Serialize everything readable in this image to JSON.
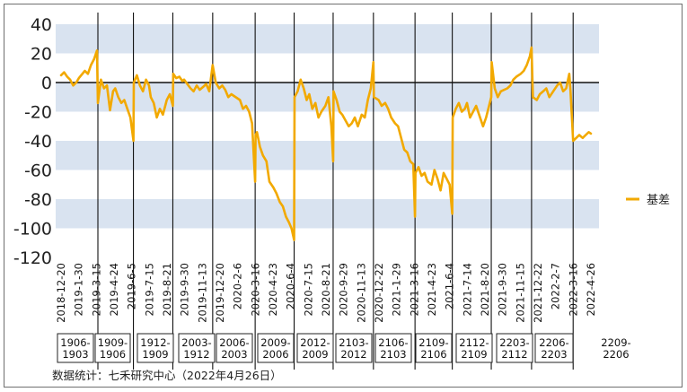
{
  "chart_data": {
    "type": "line",
    "title": "",
    "xlabel": "",
    "ylabel": "",
    "ylim": [
      -120,
      40
    ],
    "y_ticks": [
      40,
      20,
      0,
      -20,
      -40,
      -60,
      -80,
      -100,
      -120
    ],
    "band_color": "#d9e3f0",
    "x_tick_labels": [
      "2018-12-20",
      "2019-1-30",
      "2019-3-15",
      "2019-4-24",
      "2019-6-5",
      "2019-7-15",
      "2019-8-21",
      "2019-9-30",
      "2019-11-13",
      "2019-12-20",
      "2020-2-6",
      "2020-3-16",
      "2020-4-23",
      "2020-6-4",
      "2020-7-15",
      "2020-8-21",
      "2020-9-29",
      "2020-11-13",
      "2020-12-22",
      "2021-1-29",
      "2021-3-16",
      "2021-4-23",
      "2021-6-4",
      "2021-7-14",
      "2021-8-20",
      "2021-9-30",
      "2021-11-15",
      "2021-12-22",
      "2022-2-7",
      "2022-3-16",
      "2022-4-26"
    ],
    "contract_labels": [
      "1906-\n1903",
      "1909-\n1906",
      "1912-\n1909",
      "2003-\n1912",
      "2006-\n2003",
      "2009-\n2006",
      "2012-\n2009",
      "2103-\n2012",
      "2106-\n2103",
      "2109-\n2106",
      "2112-\n2109",
      "2203-\n2112",
      "2206-\n2203",
      "2209-\n2206"
    ],
    "roll_dates": [
      "2019-3-15",
      "2019-6-5",
      "2019-9-4",
      "2019-12-5",
      "2020-3-12",
      "2020-6-10",
      "2020-9-8",
      "2020-12-10",
      "2021-3-16",
      "2021-6-10",
      "2021-9-8",
      "2021-12-10",
      "2022-3-16"
    ],
    "series": [
      {
        "name": "基差",
        "color": "#f2a900",
        "points": [
          [
            "2018-12-20",
            5
          ],
          [
            "2018-12-27",
            7
          ],
          [
            "2019-1-3",
            4
          ],
          [
            "2019-1-10",
            2
          ],
          [
            "2019-1-17",
            -2
          ],
          [
            "2019-1-24",
            0
          ],
          [
            "2019-1-30",
            3
          ],
          [
            "2019-2-13",
            8
          ],
          [
            "2019-2-20",
            6
          ],
          [
            "2019-2-27",
            12
          ],
          [
            "2019-3-6",
            16
          ],
          [
            "2019-3-13",
            22
          ],
          [
            "2019-3-15",
            -14
          ],
          [
            "2019-3-22",
            2
          ],
          [
            "2019-3-29",
            -4
          ],
          [
            "2019-4-5",
            -2
          ],
          [
            "2019-4-12",
            -19
          ],
          [
            "2019-4-19",
            -6
          ],
          [
            "2019-4-24",
            -4
          ],
          [
            "2019-5-1",
            -10
          ],
          [
            "2019-5-8",
            -14
          ],
          [
            "2019-5-15",
            -12
          ],
          [
            "2019-5-22",
            -18
          ],
          [
            "2019-5-29",
            -24
          ],
          [
            "2019-6-5",
            -40
          ],
          [
            "2019-6-6",
            0
          ],
          [
            "2019-6-13",
            5
          ],
          [
            "2019-6-20",
            -2
          ],
          [
            "2019-6-27",
            -6
          ],
          [
            "2019-7-4",
            2
          ],
          [
            "2019-7-11",
            -2
          ],
          [
            "2019-7-15",
            -10
          ],
          [
            "2019-7-22",
            -14
          ],
          [
            "2019-7-29",
            -24
          ],
          [
            "2019-8-5",
            -18
          ],
          [
            "2019-8-12",
            -22
          ],
          [
            "2019-8-21",
            -12
          ],
          [
            "2019-8-28",
            -8
          ],
          [
            "2019-9-4",
            -16
          ],
          [
            "2019-9-5",
            6
          ],
          [
            "2019-9-12",
            3
          ],
          [
            "2019-9-19",
            4
          ],
          [
            "2019-9-26",
            1
          ],
          [
            "2019-9-30",
            2
          ],
          [
            "2019-10-15",
            -4
          ],
          [
            "2019-10-22",
            -6
          ],
          [
            "2019-10-29",
            -2
          ],
          [
            "2019-11-5",
            -5
          ],
          [
            "2019-11-13",
            -3
          ],
          [
            "2019-11-20",
            -1
          ],
          [
            "2019-11-27",
            -6
          ],
          [
            "2019-12-5",
            12
          ],
          [
            "2019-12-12",
            0
          ],
          [
            "2019-12-20",
            -4
          ],
          [
            "2019-12-27",
            -2
          ],
          [
            "2020-1-3",
            -5
          ],
          [
            "2020-1-10",
            -10
          ],
          [
            "2020-1-17",
            -8
          ],
          [
            "2020-2-6",
            -12
          ],
          [
            "2020-2-13",
            -18
          ],
          [
            "2020-2-20",
            -16
          ],
          [
            "2020-2-27",
            -20
          ],
          [
            "2020-3-5",
            -28
          ],
          [
            "2020-3-12",
            -68
          ],
          [
            "2020-3-13",
            -36
          ],
          [
            "2020-3-16",
            -34
          ],
          [
            "2020-3-23",
            -44
          ],
          [
            "2020-3-30",
            -50
          ],
          [
            "2020-4-7",
            -54
          ],
          [
            "2020-4-14",
            -68
          ],
          [
            "2020-4-23",
            -72
          ],
          [
            "2020-4-30",
            -76
          ],
          [
            "2020-5-8",
            -82
          ],
          [
            "2020-5-15",
            -85
          ],
          [
            "2020-5-22",
            -92
          ],
          [
            "2020-5-29",
            -96
          ],
          [
            "2020-6-4",
            -100
          ],
          [
            "2020-6-10",
            -108
          ],
          [
            "2020-6-11",
            -10
          ],
          [
            "2020-6-18",
            -6
          ],
          [
            "2020-6-25",
            2
          ],
          [
            "2020-7-2",
            -4
          ],
          [
            "2020-7-9",
            -12
          ],
          [
            "2020-7-15",
            -8
          ],
          [
            "2020-7-22",
            -18
          ],
          [
            "2020-7-29",
            -14
          ],
          [
            "2020-8-5",
            -24
          ],
          [
            "2020-8-12",
            -20
          ],
          [
            "2020-8-21",
            -16
          ],
          [
            "2020-8-28",
            -10
          ],
          [
            "2020-9-4",
            -30
          ],
          [
            "2020-9-8",
            -54
          ],
          [
            "2020-9-9",
            -6
          ],
          [
            "2020-9-16",
            -12
          ],
          [
            "2020-9-23",
            -20
          ],
          [
            "2020-9-29",
            -22
          ],
          [
            "2020-10-14",
            -30
          ],
          [
            "2020-10-21",
            -28
          ],
          [
            "2020-10-28",
            -24
          ],
          [
            "2020-11-4",
            -30
          ],
          [
            "2020-11-13",
            -22
          ],
          [
            "2020-11-20",
            -24
          ],
          [
            "2020-11-27",
            -12
          ],
          [
            "2020-12-4",
            -4
          ],
          [
            "2020-12-10",
            14
          ],
          [
            "2020-12-11",
            -10
          ],
          [
            "2020-12-22",
            -12
          ],
          [
            "2020-12-29",
            -16
          ],
          [
            "2021-1-6",
            -14
          ],
          [
            "2021-1-13",
            -18
          ],
          [
            "2021-1-20",
            -24
          ],
          [
            "2021-1-29",
            -28
          ],
          [
            "2021-2-5",
            -30
          ],
          [
            "2021-2-19",
            -46
          ],
          [
            "2021-2-26",
            -48
          ],
          [
            "2021-3-5",
            -54
          ],
          [
            "2021-3-12",
            -56
          ],
          [
            "2021-3-16",
            -92
          ],
          [
            "2021-3-17",
            -62
          ],
          [
            "2021-3-24",
            -58
          ],
          [
            "2021-3-31",
            -64
          ],
          [
            "2021-4-7",
            -62
          ],
          [
            "2021-4-14",
            -68
          ],
          [
            "2021-4-23",
            -70
          ],
          [
            "2021-4-30",
            -60
          ],
          [
            "2021-5-7",
            -66
          ],
          [
            "2021-5-14",
            -74
          ],
          [
            "2021-5-21",
            -62
          ],
          [
            "2021-5-28",
            -66
          ],
          [
            "2021-6-4",
            -70
          ],
          [
            "2021-6-10",
            -90
          ],
          [
            "2021-6-11",
            -24
          ],
          [
            "2021-6-18",
            -18
          ],
          [
            "2021-6-25",
            -14
          ],
          [
            "2021-7-2",
            -20
          ],
          [
            "2021-7-9",
            -18
          ],
          [
            "2021-7-14",
            -14
          ],
          [
            "2021-7-21",
            -24
          ],
          [
            "2021-7-28",
            -20
          ],
          [
            "2021-8-4",
            -16
          ],
          [
            "2021-8-11",
            -22
          ],
          [
            "2021-8-20",
            -30
          ],
          [
            "2021-8-27",
            -24
          ],
          [
            "2021-9-3",
            -16
          ],
          [
            "2021-9-8",
            -10
          ],
          [
            "2021-9-9",
            14
          ],
          [
            "2021-9-16",
            -4
          ],
          [
            "2021-9-23",
            -10
          ],
          [
            "2021-9-30",
            -6
          ],
          [
            "2021-10-15",
            -4
          ],
          [
            "2021-10-22",
            -2
          ],
          [
            "2021-10-29",
            2
          ],
          [
            "2021-11-5",
            4
          ],
          [
            "2021-11-15",
            6
          ],
          [
            "2021-11-22",
            8
          ],
          [
            "2021-11-29",
            12
          ],
          [
            "2021-12-6",
            18
          ],
          [
            "2021-12-10",
            24
          ],
          [
            "2021-12-13",
            -10
          ],
          [
            "2021-12-22",
            -12
          ],
          [
            "2021-12-29",
            -8
          ],
          [
            "2022-1-6",
            -6
          ],
          [
            "2022-1-13",
            -4
          ],
          [
            "2022-1-20",
            -10
          ],
          [
            "2022-2-7",
            -2
          ],
          [
            "2022-2-14",
            0
          ],
          [
            "2022-2-21",
            -6
          ],
          [
            "2022-2-28",
            -4
          ],
          [
            "2022-3-7",
            6
          ],
          [
            "2022-3-10",
            -6
          ],
          [
            "2022-3-16",
            -40
          ],
          [
            "2022-3-23",
            -38
          ],
          [
            "2022-3-30",
            -36
          ],
          [
            "2022-4-7",
            -38
          ],
          [
            "2022-4-14",
            -36
          ],
          [
            "2022-4-21",
            -34
          ],
          [
            "2022-4-26",
            -35
          ]
        ]
      }
    ],
    "legend_position": "right"
  },
  "source_text": "数据统计：七禾研究中心（2022年4月26日）"
}
